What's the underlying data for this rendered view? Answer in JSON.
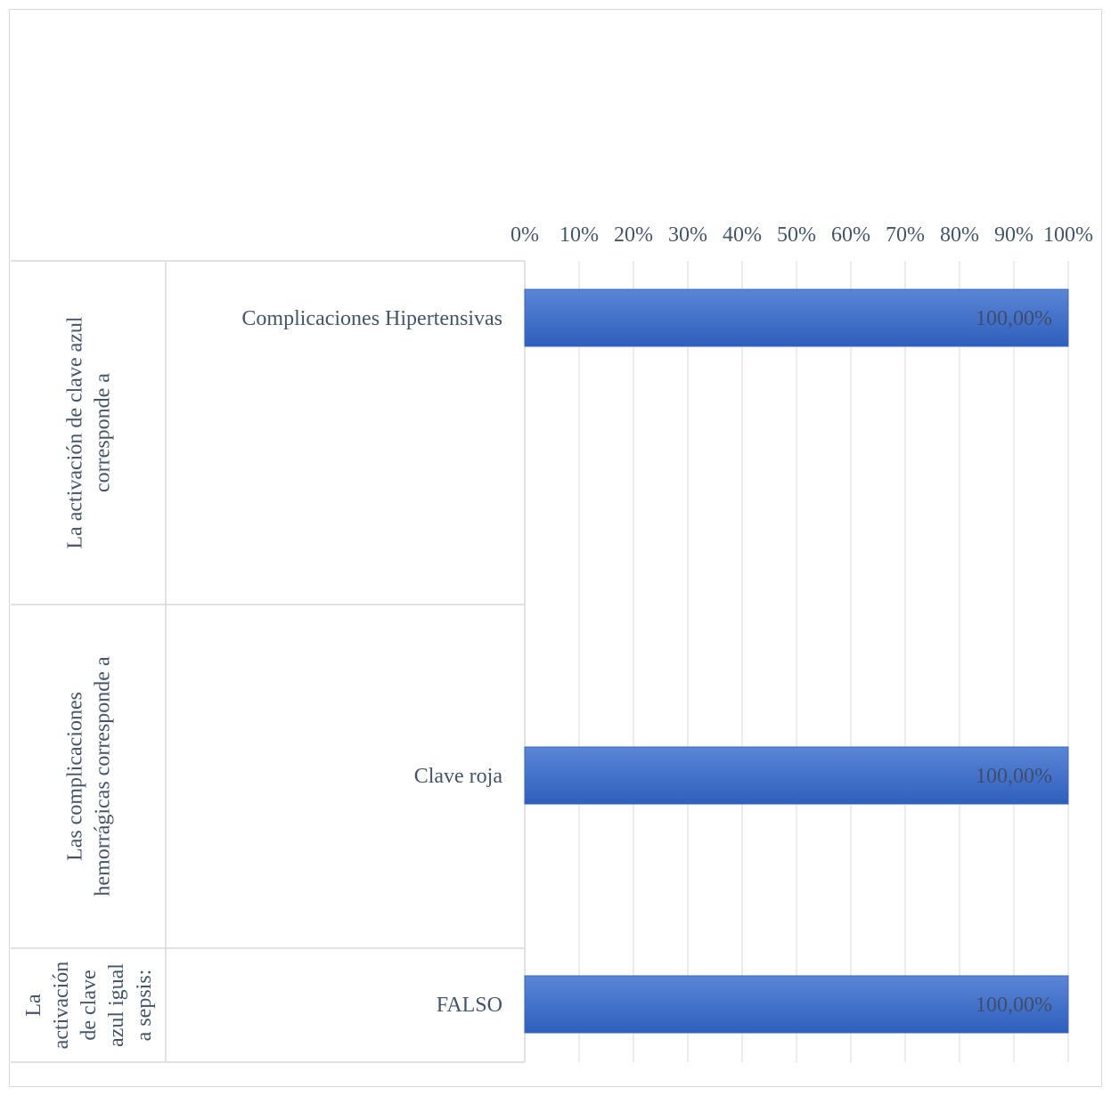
{
  "chart_data": {
    "type": "bar",
    "orientation": "horizontal",
    "xlim": [
      0,
      1
    ],
    "x_ticks": [
      "0%",
      "10%",
      "20%",
      "30%",
      "40%",
      "50%",
      "60%",
      "70%",
      "80%",
      "90%",
      "100%"
    ],
    "x_axis_position": "top",
    "grid": "vertical",
    "legend": "none",
    "groups": [
      {
        "label": "La activación de clave azul corresponde a",
        "label_lines": [
          "La activación de clave azul",
          "corresponde a"
        ],
        "categories": [
          "Complicaciones Hipertensivas"
        ],
        "values": [
          1.0
        ],
        "data_labels": [
          "100,00%"
        ]
      },
      {
        "label": "Las complicaciones hemorrágicas corresponde a",
        "label_lines": [
          "Las complicaciones",
          "hemorrágicas corresponde a"
        ],
        "categories": [
          "Clave roja"
        ],
        "values": [
          1.0
        ],
        "data_labels": [
          "100,00%"
        ]
      },
      {
        "label": "La activación de clave azul igual a sepsis:",
        "label_lines": [
          "La",
          "activación",
          "de clave",
          "azul igual",
          "a sepsis:"
        ],
        "categories": [
          "FALSO"
        ],
        "values": [
          1.0
        ],
        "data_labels": [
          "100,00%"
        ]
      }
    ],
    "colors": {
      "bar_top": "#5b86d6",
      "bar_bottom": "#2e5fbd",
      "bar_edge": "#3a66c2",
      "grid": "#d9d9d9",
      "axis_text": "#44546a",
      "data_label": "#404d6a"
    }
  }
}
